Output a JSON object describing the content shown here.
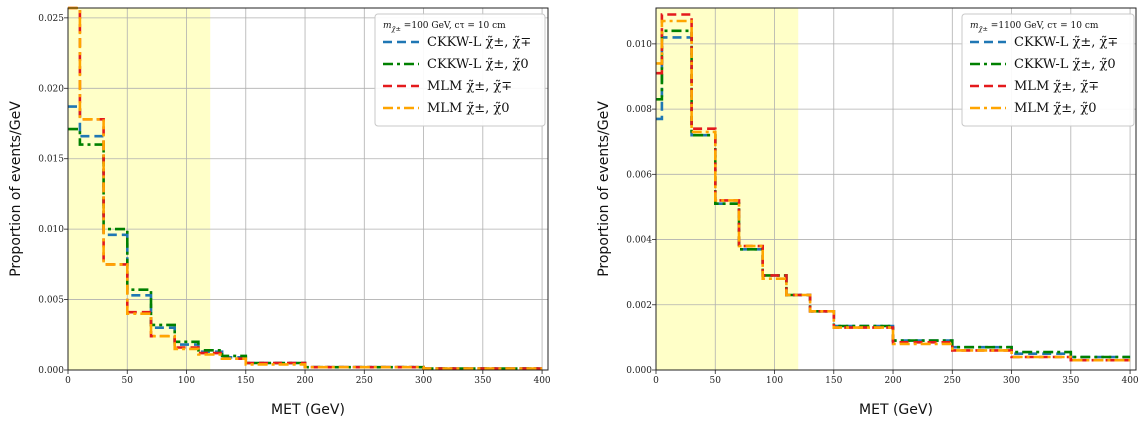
{
  "chart_data": [
    {
      "type": "line",
      "subtype": "step-histogram",
      "xlabel": "MET (GeV)",
      "ylabel": "Proportion of events/GeV",
      "xlim": [
        0,
        405
      ],
      "ylim": [
        0,
        0.0257
      ],
      "xticks": [
        "0",
        "50",
        "100",
        "150",
        "200",
        "250",
        "300",
        "350",
        "400"
      ],
      "yticks": [
        "0.000",
        "0.005",
        "0.010",
        "0.015",
        "0.020",
        "0.025"
      ],
      "grid": true,
      "highlight_band": {
        "x_range": [
          0,
          120
        ],
        "color": "#ffffc8"
      },
      "legend": {
        "placement": "top-right",
        "title": "m_{χ̃±} =100 GeV, cτ = 10 cm"
      },
      "bin_edges": [
        0,
        10,
        30,
        50,
        70,
        90,
        110,
        130,
        150,
        200,
        300,
        400
      ],
      "series": [
        {
          "name": "CKKW-L χ̃±, χ̃∓",
          "color": "#1f77b4",
          "dash": "dashed",
          "values": [
            0.0187,
            0.0166,
            0.0096,
            0.0053,
            0.003,
            0.0018,
            0.0013,
            0.0009,
            0.0005,
            0.0002,
            0.0001
          ]
        },
        {
          "name": "CKKW-L χ̃±, χ̃0",
          "color": "#008000",
          "dash": "dashdot",
          "values": [
            0.0171,
            0.016,
            0.01,
            0.0057,
            0.0032,
            0.002,
            0.0014,
            0.001,
            0.0005,
            0.0002,
            0.0001
          ]
        },
        {
          "name": "MLM χ̃±, χ̃∓",
          "color": "#e41a1c",
          "dash": "dashed",
          "values": [
            0.0257,
            0.0178,
            0.0075,
            0.0041,
            0.0024,
            0.0016,
            0.0012,
            0.0008,
            0.0005,
            0.0002,
            0.0001
          ]
        },
        {
          "name": "MLM χ̃±, χ̃0",
          "color": "#ffa500",
          "dash": "dashdot",
          "values": [
            0.0257,
            0.0178,
            0.0075,
            0.004,
            0.0024,
            0.0015,
            0.0011,
            0.0008,
            0.0004,
            0.0002,
            0.0001
          ]
        }
      ]
    },
    {
      "type": "line",
      "subtype": "step-histogram",
      "xlabel": "MET (GeV)",
      "ylabel": "Proportion of events/GeV",
      "xlim": [
        0,
        405
      ],
      "ylim": [
        0,
        0.0111
      ],
      "xticks": [
        "0",
        "50",
        "100",
        "150",
        "200",
        "250",
        "300",
        "350",
        "400"
      ],
      "yticks": [
        "0.000",
        "0.002",
        "0.004",
        "0.006",
        "0.008",
        "0.010"
      ],
      "grid": true,
      "highlight_band": {
        "x_range": [
          0,
          120
        ],
        "color": "#ffffc8"
      },
      "legend": {
        "placement": "top-right",
        "title": "m_{χ̃±} =1100 GeV, cτ = 10 cm"
      },
      "bin_edges": [
        0,
        5,
        10,
        30,
        50,
        70,
        90,
        110,
        130,
        150,
        200,
        250,
        300,
        350,
        400
      ],
      "series": [
        {
          "name": "CKKW-L χ̃±, χ̃∓",
          "color": "#1f77b4",
          "dash": "dashed",
          "values": [
            0.0077,
            0.0102,
            0.0102,
            0.0072,
            0.0051,
            0.0037,
            0.0029,
            0.0023,
            0.0018,
            0.00135,
            0.0009,
            0.0007,
            0.0005,
            0.0004
          ]
        },
        {
          "name": "CKKW-L χ̃±, χ̃0",
          "color": "#008000",
          "dash": "dashdot",
          "values": [
            0.0083,
            0.0104,
            0.0104,
            0.0072,
            0.0051,
            0.0037,
            0.0029,
            0.0023,
            0.0018,
            0.00135,
            0.0009,
            0.0007,
            0.00055,
            0.0004
          ]
        },
        {
          "name": "MLM χ̃±, χ̃∓",
          "color": "#e41a1c",
          "dash": "dashed",
          "values": [
            0.0091,
            0.0109,
            0.0109,
            0.0074,
            0.0052,
            0.0038,
            0.0029,
            0.0023,
            0.0018,
            0.0013,
            0.00085,
            0.0006,
            0.0004,
            0.0003
          ]
        },
        {
          "name": "MLM χ̃±, χ̃0",
          "color": "#ffa500",
          "dash": "dashdot",
          "values": [
            0.0094,
            0.0107,
            0.0107,
            0.0073,
            0.0052,
            0.0038,
            0.0028,
            0.0023,
            0.0018,
            0.0013,
            0.0008,
            0.0006,
            0.0004,
            0.0003
          ]
        }
      ]
    }
  ],
  "legend_labels": {
    "left_title_main": "=100 GeV, cτ = 10 cm",
    "right_title_main": "=1100 GeV, cτ = 10 cm",
    "title_prefix": "m",
    "title_sub": "χ̃±"
  }
}
